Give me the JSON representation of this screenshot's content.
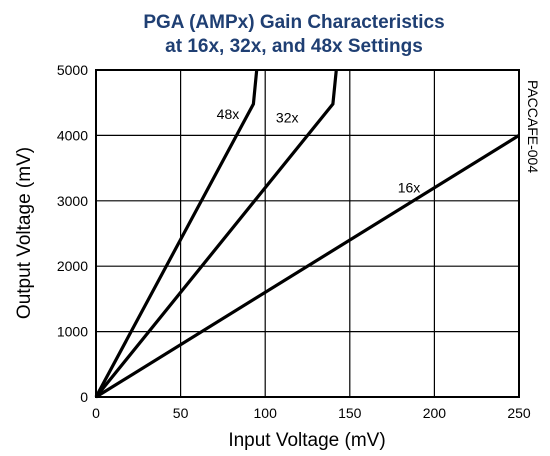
{
  "chart_data": {
    "type": "line",
    "title": [
      "PGA (AMPx) Gain Characteristics",
      "at 16x, 32x, and 48x Settings"
    ],
    "xlabel": "Input Voltage (mV)",
    "ylabel": "Output Voltage (mV)",
    "xlim": [
      0,
      250
    ],
    "ylim": [
      0,
      5000
    ],
    "xticks": [
      "0",
      "50",
      "100",
      "150",
      "200",
      "250"
    ],
    "yticks": [
      "0",
      "1000",
      "2000",
      "3000",
      "4000",
      "5000"
    ],
    "xtick_values": [
      0,
      50,
      100,
      150,
      200,
      250
    ],
    "ytick_values": [
      0,
      1000,
      2000,
      3000,
      4000,
      5000
    ],
    "grid": true,
    "side_label": "PACCAFE-004",
    "series": [
      {
        "name": "48x",
        "label": "48x",
        "x": [
          0,
          93,
          95
        ],
        "y": [
          0,
          4480,
          5000
        ]
      },
      {
        "name": "32x",
        "label": "32x",
        "x": [
          0,
          140,
          142
        ],
        "y": [
          0,
          4480,
          5000
        ]
      },
      {
        "name": "16x",
        "label": "16x",
        "x": [
          0,
          250
        ],
        "y": [
          0,
          4000
        ]
      }
    ],
    "series_label_positions": [
      {
        "x": 78,
        "y": 4250
      },
      {
        "x": 113,
        "y": 4200
      },
      {
        "x": 185,
        "y": 3130
      }
    ]
  }
}
